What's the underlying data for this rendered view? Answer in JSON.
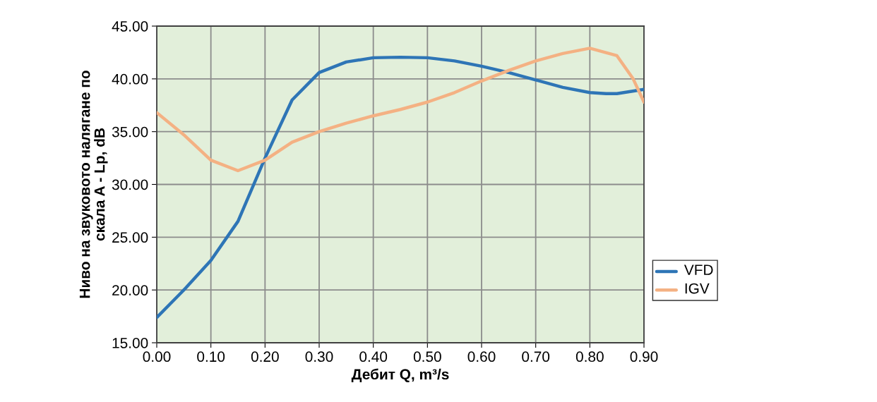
{
  "chart_data": {
    "type": "line",
    "xlabel": "Дебит Q, m³/s",
    "ylabel": "Ниво на звуковото налягане по\nскала A - Lp, dB",
    "series": [
      {
        "name": "VFD",
        "color": "#2e75b6",
        "x": [
          0,
          0.05,
          0.1,
          0.15,
          0.2,
          0.25,
          0.3,
          0.35,
          0.4,
          0.45,
          0.5,
          0.55,
          0.6,
          0.65,
          0.7,
          0.75,
          0.8,
          0.83,
          0.85,
          0.9
        ],
        "values": [
          17.4,
          20.0,
          22.8,
          26.5,
          32.5,
          38.0,
          40.6,
          41.6,
          42.0,
          42.05,
          42.0,
          41.7,
          41.2,
          40.6,
          39.9,
          39.2,
          38.7,
          38.6,
          38.6,
          39.0
        ]
      },
      {
        "name": "IGV",
        "color": "#f4b183",
        "x": [
          0,
          0.05,
          0.1,
          0.15,
          0.2,
          0.25,
          0.3,
          0.35,
          0.4,
          0.45,
          0.5,
          0.55,
          0.6,
          0.65,
          0.7,
          0.75,
          0.8,
          0.85,
          0.88,
          0.9
        ],
        "values": [
          36.8,
          34.7,
          32.3,
          31.3,
          32.3,
          34.0,
          35.0,
          35.8,
          36.5,
          37.1,
          37.8,
          38.7,
          39.8,
          40.8,
          41.7,
          42.4,
          42.9,
          42.2,
          40.0,
          37.8
        ]
      }
    ],
    "xlim": [
      0,
      0.9
    ],
    "ylim": [
      15,
      45
    ],
    "xticks": [
      {
        "value": 0,
        "label": "0.00"
      },
      {
        "value": 0.1,
        "label": "0.10"
      },
      {
        "value": 0.2,
        "label": "0.20"
      },
      {
        "value": 0.3,
        "label": "0.30"
      },
      {
        "value": 0.4,
        "label": "0.40"
      },
      {
        "value": 0.5,
        "label": "0.50"
      },
      {
        "value": 0.6,
        "label": "0.60"
      },
      {
        "value": 0.7,
        "label": "0.70"
      },
      {
        "value": 0.8,
        "label": "0.80"
      },
      {
        "value": 0.9,
        "label": "0.90"
      }
    ],
    "yticks": [
      {
        "value": 15,
        "label": "15.00"
      },
      {
        "value": 20,
        "label": "20.00"
      },
      {
        "value": 25,
        "label": "25.00"
      },
      {
        "value": 30,
        "label": "30.00"
      },
      {
        "value": 35,
        "label": "35.00"
      },
      {
        "value": 40,
        "label": "40.00"
      },
      {
        "value": 45,
        "label": "45.00"
      }
    ],
    "grid": true,
    "legend": "right",
    "marker": "none",
    "line_style": "solid"
  }
}
